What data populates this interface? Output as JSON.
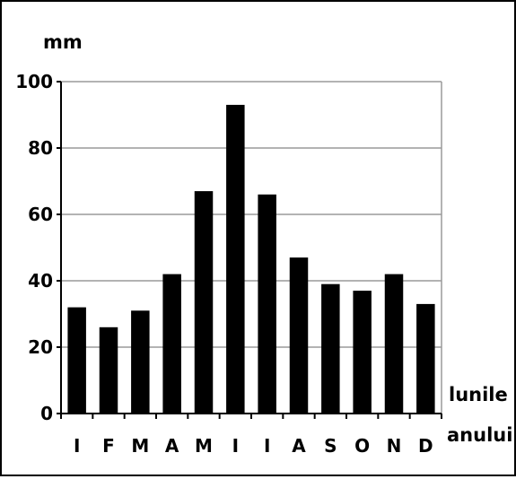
{
  "chart_data": {
    "type": "bar",
    "ylabel": "mm",
    "xlabel": "lunile anului",
    "xlabel_lines": [
      "lunile",
      "anului"
    ],
    "categories": [
      "I",
      "F",
      "M",
      "A",
      "M",
      "I",
      "I",
      "A",
      "S",
      "O",
      "N",
      "D"
    ],
    "values": [
      32,
      26,
      31,
      42,
      67,
      93,
      66,
      47,
      39,
      37,
      42,
      33
    ],
    "ylim": [
      0,
      100
    ],
    "yticks": [
      0,
      20,
      40,
      60,
      80,
      100
    ],
    "grid": true,
    "bar_color": "#000000",
    "grid_color": "#9a9a9a"
  }
}
